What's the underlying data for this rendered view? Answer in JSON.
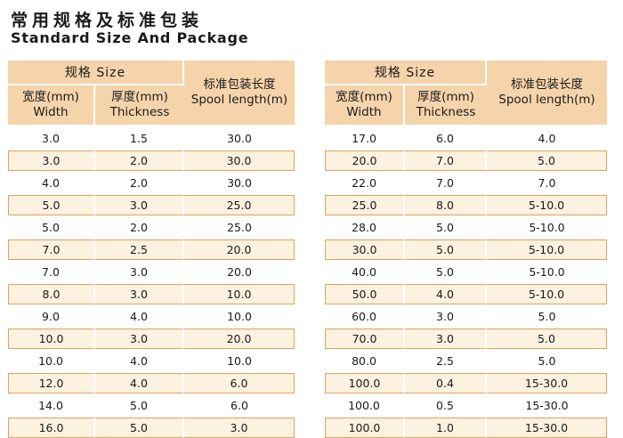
{
  "title": {
    "zh": "常用规格及标准包装",
    "en": "Standard Size And Package"
  },
  "headers": {
    "spec": "规格  Size",
    "width_zh": "宽度(mm)",
    "width_en": "Width",
    "thickness_zh": "厚度(mm)",
    "thickness_en": "Thickness",
    "spool_zh": "标准包装长度",
    "spool_en": "Spool length(m)"
  },
  "colors": {
    "header_bg": "#f6d4ab",
    "shaded_row_bg": "#fdf1df",
    "shaded_row_border": "#e0a25c"
  },
  "tables": [
    {
      "rows": [
        {
          "width": "3.0",
          "thickness": "1.5",
          "spool": "30.0"
        },
        {
          "width": "3.0",
          "thickness": "2.0",
          "spool": "30.0"
        },
        {
          "width": "4.0",
          "thickness": "2.0",
          "spool": "30.0"
        },
        {
          "width": "5.0",
          "thickness": "3.0",
          "spool": "25.0"
        },
        {
          "width": "5.0",
          "thickness": "2.0",
          "spool": "25.0"
        },
        {
          "width": "7.0",
          "thickness": "2.5",
          "spool": "20.0"
        },
        {
          "width": "7.0",
          "thickness": "3.0",
          "spool": "20.0"
        },
        {
          "width": "8.0",
          "thickness": "3.0",
          "spool": "10.0"
        },
        {
          "width": "9.0",
          "thickness": "4.0",
          "spool": "10.0"
        },
        {
          "width": "10.0",
          "thickness": "3.0",
          "spool": "20.0"
        },
        {
          "width": "10.0",
          "thickness": "4.0",
          "spool": "10.0"
        },
        {
          "width": "12.0",
          "thickness": "4.0",
          "spool": "6.0"
        },
        {
          "width": "14.0",
          "thickness": "5.0",
          "spool": "6.0"
        },
        {
          "width": "16.0",
          "thickness": "5.0",
          "spool": "3.0"
        }
      ]
    },
    {
      "rows": [
        {
          "width": "17.0",
          "thickness": "6.0",
          "spool": "4.0"
        },
        {
          "width": "20.0",
          "thickness": "7.0",
          "spool": "5.0"
        },
        {
          "width": "22.0",
          "thickness": "7.0",
          "spool": "7.0"
        },
        {
          "width": "25.0",
          "thickness": "8.0",
          "spool": "5-10.0"
        },
        {
          "width": "28.0",
          "thickness": "5.0",
          "spool": "5-10.0"
        },
        {
          "width": "30.0",
          "thickness": "5.0",
          "spool": "5-10.0"
        },
        {
          "width": "40.0",
          "thickness": "5.0",
          "spool": "5-10.0"
        },
        {
          "width": "50.0",
          "thickness": "4.0",
          "spool": "5-10.0"
        },
        {
          "width": "60.0",
          "thickness": "3.0",
          "spool": "5.0"
        },
        {
          "width": "70.0",
          "thickness": "3.0",
          "spool": "5.0"
        },
        {
          "width": "80.0",
          "thickness": "2.5",
          "spool": "5.0"
        },
        {
          "width": "100.0",
          "thickness": "0.4",
          "spool": "15-30.0"
        },
        {
          "width": "100.0",
          "thickness": "0.5",
          "spool": "15-30.0"
        },
        {
          "width": "100.0",
          "thickness": "1.0",
          "spool": "15-30.0"
        }
      ]
    }
  ]
}
